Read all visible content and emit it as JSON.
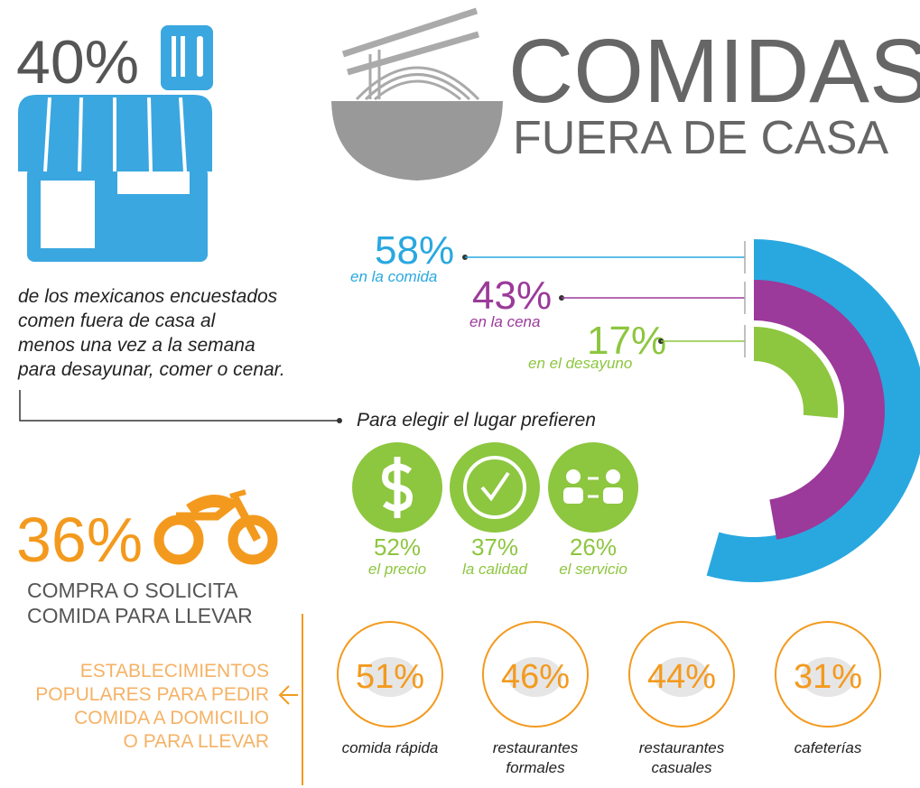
{
  "store": {
    "percent": "40%",
    "description": [
      "de los mexicanos encuestados",
      "comen fuera de casa al",
      "menos una vez a la semana",
      "para desayunar, comer o cenar."
    ]
  },
  "title": {
    "line1": "COMIDAS",
    "line2": "FUERA DE CASA"
  },
  "meals": [
    {
      "percent": "58%",
      "label": "en la comida"
    },
    {
      "percent": "43%",
      "label": "en la cena"
    },
    {
      "percent": "17%",
      "label": "en el desayuno"
    }
  ],
  "prefer": {
    "title": "Para elegir el lugar prefieren",
    "items": [
      {
        "percent": "52%",
        "label": "el precio"
      },
      {
        "percent": "37%",
        "label": "la calidad"
      },
      {
        "percent": "26%",
        "label": "el servicio"
      }
    ]
  },
  "takeout": {
    "percent": "36%",
    "lines": [
      "COMPRA O SOLICITA",
      "COMIDA PARA LLEVAR"
    ]
  },
  "establishments": {
    "title": [
      "ESTABLECIMIENTOS",
      "POPULARES PARA PEDIR",
      "COMIDA A DOMICILIO",
      "O PARA LLEVAR"
    ],
    "items": [
      {
        "percent": "51%",
        "label": [
          "comida rápida"
        ]
      },
      {
        "percent": "46%",
        "label": [
          "restaurantes",
          "formales"
        ]
      },
      {
        "percent": "44%",
        "label": [
          "restaurantes",
          "casuales"
        ]
      },
      {
        "percent": "31%",
        "label": [
          "cafeterías"
        ]
      }
    ]
  }
}
